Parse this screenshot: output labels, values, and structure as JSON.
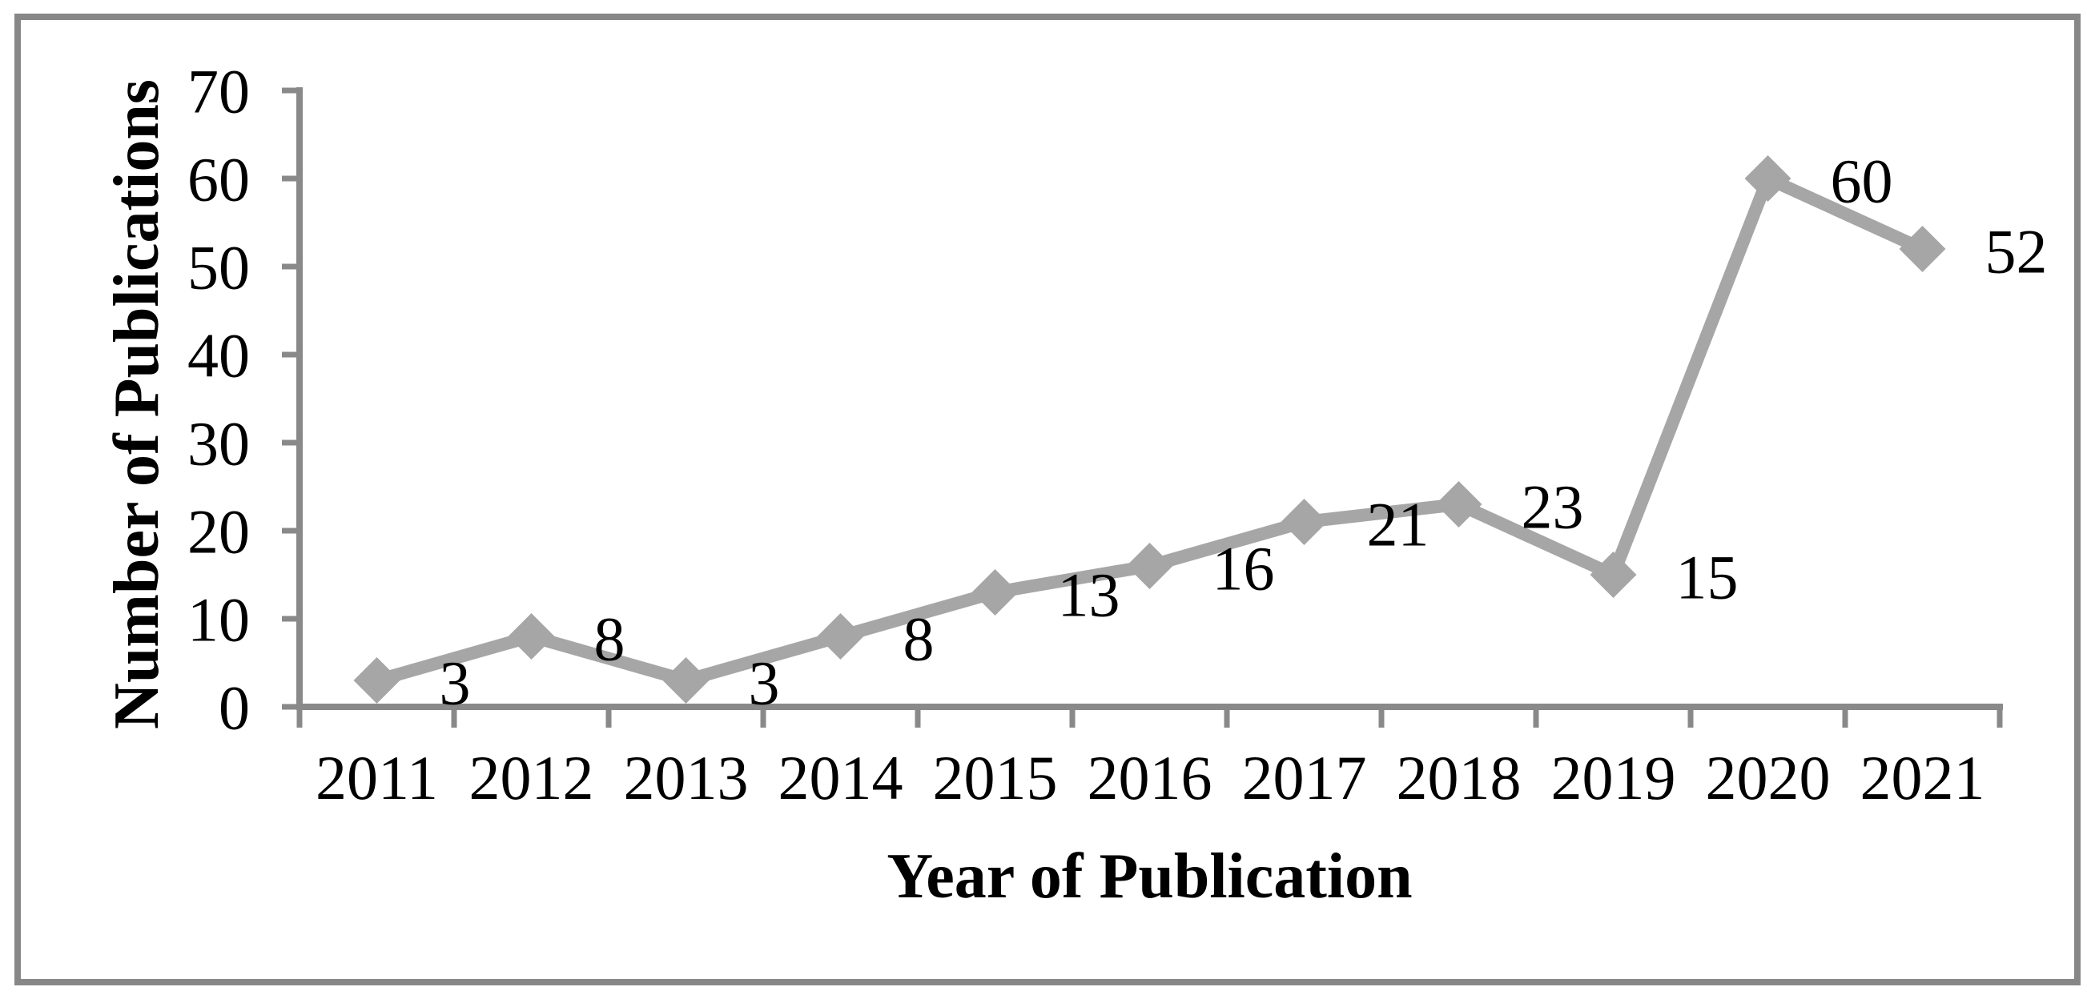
{
  "chart_data": {
    "type": "line",
    "title": "",
    "categories": [
      "2011",
      "2012",
      "2013",
      "2014",
      "2015",
      "2016",
      "2017",
      "2018",
      "2019",
      "2020",
      "2021"
    ],
    "values": [
      3,
      8,
      3,
      8,
      13,
      16,
      21,
      23,
      15,
      60,
      52
    ],
    "data_labels": [
      "3",
      "8",
      "3",
      "8",
      "13",
      "16",
      "21",
      "23",
      "15",
      "60",
      "52"
    ],
    "xlabel": "Year of Publication",
    "ylabel": "Number of Publications",
    "ylim": [
      0,
      70
    ],
    "y_ticks": [
      0,
      10,
      20,
      30,
      40,
      50,
      60,
      70
    ],
    "grid": false,
    "legend": "none",
    "marker": "diamond",
    "data_label_position": "right",
    "colors": {
      "series_line": "#a6a6a6",
      "marker_fill": "#a6a6a6",
      "axis": "#898989",
      "frame_border": "#878787",
      "text": "#000000",
      "background": "#ffffff"
    }
  }
}
